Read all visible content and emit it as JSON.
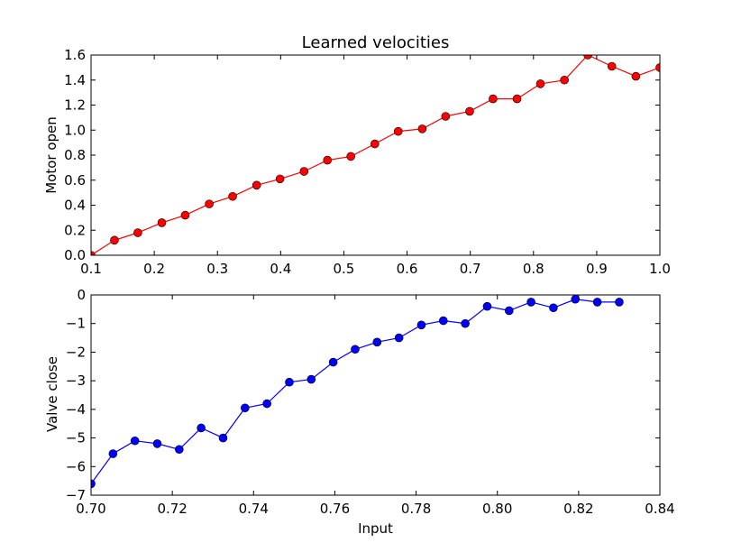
{
  "chart_data": [
    {
      "type": "line",
      "title": "Learned velocities",
      "xlabel": "",
      "ylabel": "Motor open",
      "xlim": [
        0.1,
        1.0
      ],
      "ylim": [
        0.0,
        1.6
      ],
      "xticks": [
        "0.1",
        "0.2",
        "0.3",
        "0.4",
        "0.5",
        "0.6",
        "0.7",
        "0.8",
        "0.9",
        "1.0"
      ],
      "yticks": [
        "0.0",
        "0.2",
        "0.4",
        "0.6",
        "0.8",
        "1.0",
        "1.2",
        "1.4",
        "1.6"
      ],
      "grid": false,
      "series": [
        {
          "color": "#ff0000",
          "marker": "circle",
          "x": [
            0.1,
            0.137,
            0.174,
            0.212,
            0.249,
            0.287,
            0.324,
            0.362,
            0.399,
            0.437,
            0.474,
            0.511,
            0.549,
            0.586,
            0.624,
            0.661,
            0.699,
            0.736,
            0.774,
            0.811,
            0.849,
            0.886,
            0.924,
            0.962,
            1.0
          ],
          "y": [
            0.0,
            0.12,
            0.18,
            0.26,
            0.32,
            0.41,
            0.47,
            0.56,
            0.61,
            0.67,
            0.76,
            0.79,
            0.89,
            0.99,
            1.01,
            1.11,
            1.15,
            1.25,
            1.25,
            1.37,
            1.4,
            1.6,
            1.51,
            1.43,
            1.5
          ]
        }
      ]
    },
    {
      "type": "line",
      "title": "",
      "xlabel": "Input",
      "ylabel": "Valve close",
      "xlim": [
        0.7,
        0.84
      ],
      "ylim": [
        -7,
        0
      ],
      "xticks": [
        "0.70",
        "0.72",
        "0.74",
        "0.76",
        "0.78",
        "0.80",
        "0.82",
        "0.84"
      ],
      "yticks": [
        "−7",
        "−6",
        "−5",
        "−4",
        "−3",
        "−2",
        "−1",
        "0"
      ],
      "grid": false,
      "series": [
        {
          "color": "#0000ff",
          "marker": "circle",
          "x": [
            0.7,
            0.7054,
            0.7108,
            0.7163,
            0.7217,
            0.7271,
            0.7325,
            0.7379,
            0.7433,
            0.7488,
            0.7542,
            0.7596,
            0.765,
            0.7704,
            0.7758,
            0.7813,
            0.7867,
            0.7921,
            0.7975,
            0.8029,
            0.8083,
            0.8138,
            0.8192,
            0.8246,
            0.83
          ],
          "y": [
            -6.6,
            -5.55,
            -5.1,
            -5.2,
            -5.4,
            -4.65,
            -5.0,
            -3.95,
            -3.8,
            -3.05,
            -2.95,
            -2.35,
            -1.9,
            -1.65,
            -1.5,
            -1.05,
            -0.9,
            -1.0,
            -0.4,
            -0.55,
            -0.25,
            -0.45,
            -0.15,
            -0.25,
            -0.25
          ]
        }
      ]
    }
  ]
}
